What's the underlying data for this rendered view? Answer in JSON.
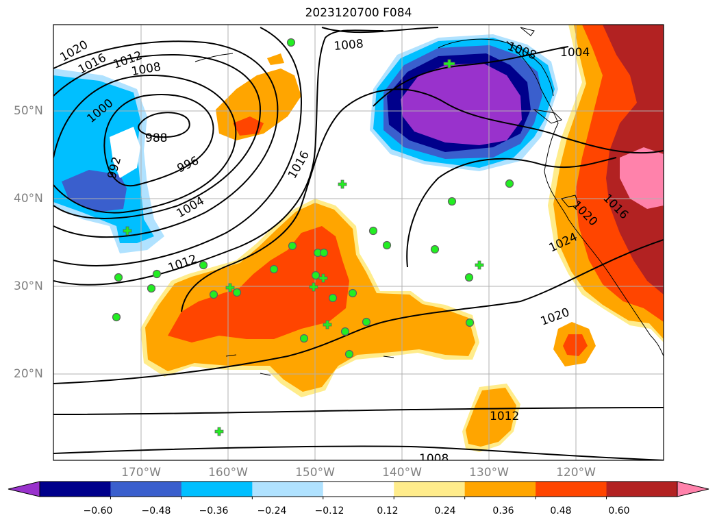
{
  "title": "2023120700 F084",
  "map": {
    "lat_labels": [
      {
        "id": "50",
        "text": "50°N",
        "lat": 50
      },
      {
        "id": "40",
        "text": "40°N",
        "lat": 40
      },
      {
        "id": "30",
        "text": "30°N",
        "lat": 30
      },
      {
        "id": "20",
        "text": "20°N",
        "lat": 20
      }
    ],
    "lon_labels": [
      {
        "id": "170w",
        "text": "170°W",
        "lon": -170
      },
      {
        "id": "160w",
        "text": "160°W",
        "lon": -160
      },
      {
        "id": "150w",
        "text": "150°W",
        "lon": -150
      },
      {
        "id": "140w",
        "text": "140°W",
        "lon": -140
      },
      {
        "id": "130w",
        "text": "130°W",
        "lon": -130
      },
      {
        "id": "120w",
        "text": "120°W",
        "lon": -120
      }
    ],
    "isobar_labels": [
      "1020",
      "1016",
      "1012",
      "1008",
      "1000",
      "988",
      "992",
      "996",
      "1004",
      "1012",
      "1016",
      "1008",
      "1008",
      "1004",
      "1024",
      "1020",
      "1012",
      "1008",
      "1016",
      "1020"
    ],
    "colors": {
      "purple": "#9932cc",
      "navy": "#00008b",
      "blue": "#3a5fcd",
      "deepsky": "#00bfff",
      "lightblue": "#b0e2ff",
      "yellow": "#ffec8b",
      "orange": "#ffa500",
      "orangered": "#ff4500",
      "firebrick": "#b22222",
      "pink": "#ff82ab",
      "marker": "#22ee22"
    }
  },
  "colorbar": {
    "ticks": [
      "−0.60",
      "−0.48",
      "−0.36",
      "−0.24",
      "−0.12",
      "0.12",
      "0.24",
      "0.36",
      "0.48",
      "0.60"
    ],
    "segments": [
      "#9932cc",
      "#00008b",
      "#3a5fcd",
      "#00bfff",
      "#b0e2ff",
      "#ffffff",
      "#ffec8b",
      "#ffa500",
      "#ff4500",
      "#b22222",
      "#ff82ab"
    ]
  }
}
